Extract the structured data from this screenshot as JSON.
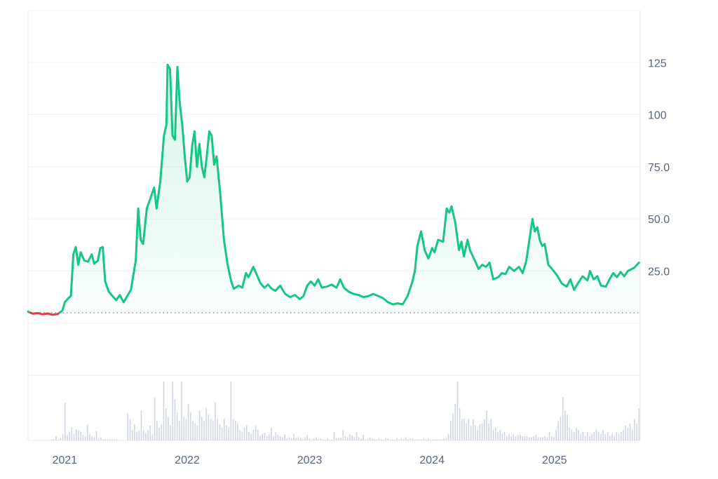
{
  "chart_data": {
    "type": "area",
    "title": "",
    "xlabel": "",
    "ylabel": "",
    "baseline": 5,
    "ylim": [
      -25,
      150
    ],
    "y_ticks": [
      25.0,
      50.0,
      75.0,
      100,
      125
    ],
    "y_tick_labels": [
      "25.0",
      "50.0",
      "75.0",
      "100",
      "125"
    ],
    "x_ticks": [
      2021,
      2022,
      2023,
      2024,
      2025
    ],
    "x_tick_labels": [
      "2021",
      "2022",
      "2023",
      "2024",
      "2025"
    ],
    "xlim": [
      2020.7,
      2025.7
    ],
    "grid": "horizontal",
    "colors": {
      "up": "#16c784",
      "down": "#ea3943",
      "grid": "#eff2f5",
      "axis_text": "#58667e",
      "volume": "#cfd6e4"
    },
    "series": [
      {
        "values": [
          [
            2020.7,
            5.5
          ],
          [
            2020.74,
            4.5
          ],
          [
            2020.78,
            4.8
          ],
          [
            2020.82,
            4.2
          ],
          [
            2020.86,
            4.6
          ],
          [
            2020.9,
            4.0
          ],
          [
            2020.94,
            4.3
          ],
          [
            2020.98,
            6.0
          ],
          [
            2021.0,
            10.0
          ],
          [
            2021.03,
            12.0
          ],
          [
            2021.05,
            13.0
          ],
          [
            2021.07,
            33.0
          ],
          [
            2021.09,
            36.5
          ],
          [
            2021.11,
            28.0
          ],
          [
            2021.13,
            34.0
          ],
          [
            2021.16,
            30.0
          ],
          [
            2021.19,
            29.5
          ],
          [
            2021.22,
            33.0
          ],
          [
            2021.24,
            28.5
          ],
          [
            2021.27,
            30.0
          ],
          [
            2021.29,
            36.0
          ],
          [
            2021.31,
            36.5
          ],
          [
            2021.33,
            20.0
          ],
          [
            2021.36,
            15.0
          ],
          [
            2021.39,
            13.0
          ],
          [
            2021.42,
            11.0
          ],
          [
            2021.45,
            13.5
          ],
          [
            2021.48,
            10.0
          ],
          [
            2021.5,
            12.0
          ],
          [
            2021.54,
            16.0
          ],
          [
            2021.58,
            30.0
          ],
          [
            2021.6,
            55.0
          ],
          [
            2021.62,
            40.0
          ],
          [
            2021.64,
            38.0
          ],
          [
            2021.67,
            55.0
          ],
          [
            2021.7,
            60.0
          ],
          [
            2021.73,
            65.0
          ],
          [
            2021.75,
            55.0
          ],
          [
            2021.78,
            68.0
          ],
          [
            2021.81,
            90.0
          ],
          [
            2021.83,
            95.0
          ],
          [
            2021.84,
            124.0
          ],
          [
            2021.86,
            122.0
          ],
          [
            2021.88,
            90.0
          ],
          [
            2021.9,
            88.0
          ],
          [
            2021.92,
            123.0
          ],
          [
            2021.94,
            105.0
          ],
          [
            2021.96,
            95.0
          ],
          [
            2021.98,
            80.0
          ],
          [
            2022.0,
            68.0
          ],
          [
            2022.02,
            70.0
          ],
          [
            2022.04,
            85.0
          ],
          [
            2022.06,
            92.0
          ],
          [
            2022.08,
            75.0
          ],
          [
            2022.1,
            86.0
          ],
          [
            2022.12,
            75.0
          ],
          [
            2022.14,
            70.0
          ],
          [
            2022.16,
            80.0
          ],
          [
            2022.18,
            92.0
          ],
          [
            2022.2,
            90.0
          ],
          [
            2022.22,
            76.0
          ],
          [
            2022.24,
            80.0
          ],
          [
            2022.27,
            62.0
          ],
          [
            2022.3,
            40.0
          ],
          [
            2022.33,
            28.0
          ],
          [
            2022.36,
            20.0
          ],
          [
            2022.38,
            16.5
          ],
          [
            2022.42,
            18.0
          ],
          [
            2022.45,
            17.0
          ],
          [
            2022.48,
            24.0
          ],
          [
            2022.5,
            22.0
          ],
          [
            2022.54,
            27.0
          ],
          [
            2022.57,
            23.0
          ],
          [
            2022.6,
            19.0
          ],
          [
            2022.63,
            17.0
          ],
          [
            2022.66,
            18.5
          ],
          [
            2022.69,
            16.5
          ],
          [
            2022.72,
            15.5
          ],
          [
            2022.76,
            18.0
          ],
          [
            2022.8,
            14.0
          ],
          [
            2022.84,
            12.5
          ],
          [
            2022.88,
            13.5
          ],
          [
            2022.92,
            11.5
          ],
          [
            2022.95,
            13.0
          ],
          [
            2022.98,
            18.0
          ],
          [
            2023.01,
            20.0
          ],
          [
            2023.04,
            18.0
          ],
          [
            2023.07,
            21.0
          ],
          [
            2023.1,
            17.0
          ],
          [
            2023.14,
            17.5
          ],
          [
            2023.18,
            18.5
          ],
          [
            2023.22,
            17.0
          ],
          [
            2023.25,
            21.0
          ],
          [
            2023.28,
            17.0
          ],
          [
            2023.32,
            15.0
          ],
          [
            2023.36,
            14.0
          ],
          [
            2023.4,
            13.5
          ],
          [
            2023.44,
            12.5
          ],
          [
            2023.48,
            13.0
          ],
          [
            2023.52,
            14.0
          ],
          [
            2023.56,
            13.0
          ],
          [
            2023.6,
            12.0
          ],
          [
            2023.64,
            10.0
          ],
          [
            2023.68,
            9.0
          ],
          [
            2023.72,
            9.5
          ],
          [
            2023.76,
            9.0
          ],
          [
            2023.8,
            13.0
          ],
          [
            2023.84,
            20.0
          ],
          [
            2023.86,
            25.0
          ],
          [
            2023.88,
            37.0
          ],
          [
            2023.91,
            44.0
          ],
          [
            2023.94,
            35.0
          ],
          [
            2023.97,
            31.0
          ],
          [
            2024.0,
            36.0
          ],
          [
            2024.02,
            34.0
          ],
          [
            2024.05,
            40.0
          ],
          [
            2024.09,
            39.0
          ],
          [
            2024.12,
            55.0
          ],
          [
            2024.14,
            53.0
          ],
          [
            2024.16,
            56.0
          ],
          [
            2024.19,
            48.0
          ],
          [
            2024.22,
            35.0
          ],
          [
            2024.24,
            39.0
          ],
          [
            2024.26,
            32.0
          ],
          [
            2024.29,
            40.0
          ],
          [
            2024.31,
            35.0
          ],
          [
            2024.35,
            30.0
          ],
          [
            2024.38,
            26.0
          ],
          [
            2024.41,
            28.0
          ],
          [
            2024.44,
            27.0
          ],
          [
            2024.47,
            29.0
          ],
          [
            2024.5,
            21.0
          ],
          [
            2024.54,
            22.0
          ],
          [
            2024.57,
            24.0
          ],
          [
            2024.6,
            23.5
          ],
          [
            2024.63,
            27.0
          ],
          [
            2024.67,
            25.0
          ],
          [
            2024.71,
            27.0
          ],
          [
            2024.74,
            24.0
          ],
          [
            2024.77,
            30.0
          ],
          [
            2024.8,
            42.0
          ],
          [
            2024.82,
            50.0
          ],
          [
            2024.84,
            44.0
          ],
          [
            2024.86,
            46.0
          ],
          [
            2024.88,
            40.0
          ],
          [
            2024.9,
            37.0
          ],
          [
            2024.92,
            38.0
          ],
          [
            2024.95,
            28.0
          ],
          [
            2024.98,
            26.0
          ],
          [
            2025.02,
            23.0
          ],
          [
            2025.06,
            19.0
          ],
          [
            2025.1,
            17.5
          ],
          [
            2025.13,
            21.0
          ],
          [
            2025.16,
            16.0
          ],
          [
            2025.19,
            19.0
          ],
          [
            2025.23,
            22.5
          ],
          [
            2025.27,
            20.5
          ],
          [
            2025.29,
            25.0
          ],
          [
            2025.32,
            21.0
          ],
          [
            2025.35,
            22.5
          ],
          [
            2025.38,
            18.0
          ],
          [
            2025.42,
            17.5
          ],
          [
            2025.45,
            21.0
          ],
          [
            2025.48,
            24.0
          ],
          [
            2025.51,
            22.0
          ],
          [
            2025.54,
            24.5
          ],
          [
            2025.57,
            22.5
          ],
          [
            2025.6,
            25.0
          ],
          [
            2025.65,
            26.5
          ],
          [
            2025.69,
            29.0
          ]
        ]
      }
    ],
    "volume": [
      0,
      0,
      0,
      0,
      0,
      0,
      0,
      0,
      0,
      0,
      1,
      1,
      4,
      1,
      2,
      6,
      35,
      5,
      8,
      12,
      6,
      10,
      9,
      8,
      5,
      4,
      15,
      6,
      4,
      3,
      9,
      2,
      3,
      1,
      1,
      1,
      1,
      1,
      1,
      1,
      0,
      0,
      0,
      0,
      25,
      20,
      10,
      15,
      8,
      9,
      28,
      10,
      7,
      10,
      14,
      6,
      40,
      18,
      12,
      15,
      55,
      30,
      22,
      14,
      55,
      38,
      26,
      18,
      55,
      22,
      20,
      34,
      26,
      18,
      16,
      14,
      28,
      22,
      18,
      30,
      24,
      20,
      18,
      36,
      20,
      15,
      12,
      20,
      14,
      12,
      55,
      20,
      18,
      16,
      10,
      8,
      12,
      14,
      8,
      6,
      10,
      14,
      10,
      4,
      6,
      7,
      4,
      6,
      12,
      4,
      8,
      5,
      4,
      3,
      6,
      2,
      3,
      2,
      6,
      2,
      3,
      2,
      1,
      3,
      5,
      2,
      1,
      2,
      3,
      1,
      2,
      1,
      1,
      2,
      1,
      1,
      8,
      2,
      2,
      2,
      10,
      4,
      3,
      6,
      5,
      3,
      8,
      3,
      2,
      5,
      1,
      2,
      3,
      2,
      1,
      1,
      2,
      1,
      1,
      2,
      2,
      1,
      1,
      1,
      2,
      1,
      2,
      1,
      3,
      1,
      2,
      2,
      1,
      1,
      1,
      1,
      2,
      1,
      2,
      1,
      1,
      1,
      1,
      1,
      1,
      2,
      2,
      6,
      18,
      25,
      34,
      55,
      30,
      20,
      20,
      16,
      20,
      14,
      20,
      14,
      10,
      15,
      16,
      20,
      28,
      16,
      20,
      10,
      12,
      8,
      10,
      6,
      8,
      4,
      6,
      4,
      6,
      4,
      5,
      6,
      4,
      4,
      4,
      3,
      3,
      4,
      5,
      3,
      3,
      3,
      4,
      3,
      8,
      4,
      3,
      10,
      18,
      22,
      40,
      28,
      24,
      12,
      10,
      8,
      12,
      10,
      6,
      8,
      4,
      8,
      4,
      6,
      8,
      10,
      8,
      6,
      10,
      6,
      8,
      4,
      6,
      4,
      8,
      6,
      8,
      10,
      14,
      12,
      16,
      10,
      20,
      16,
      30
    ]
  }
}
